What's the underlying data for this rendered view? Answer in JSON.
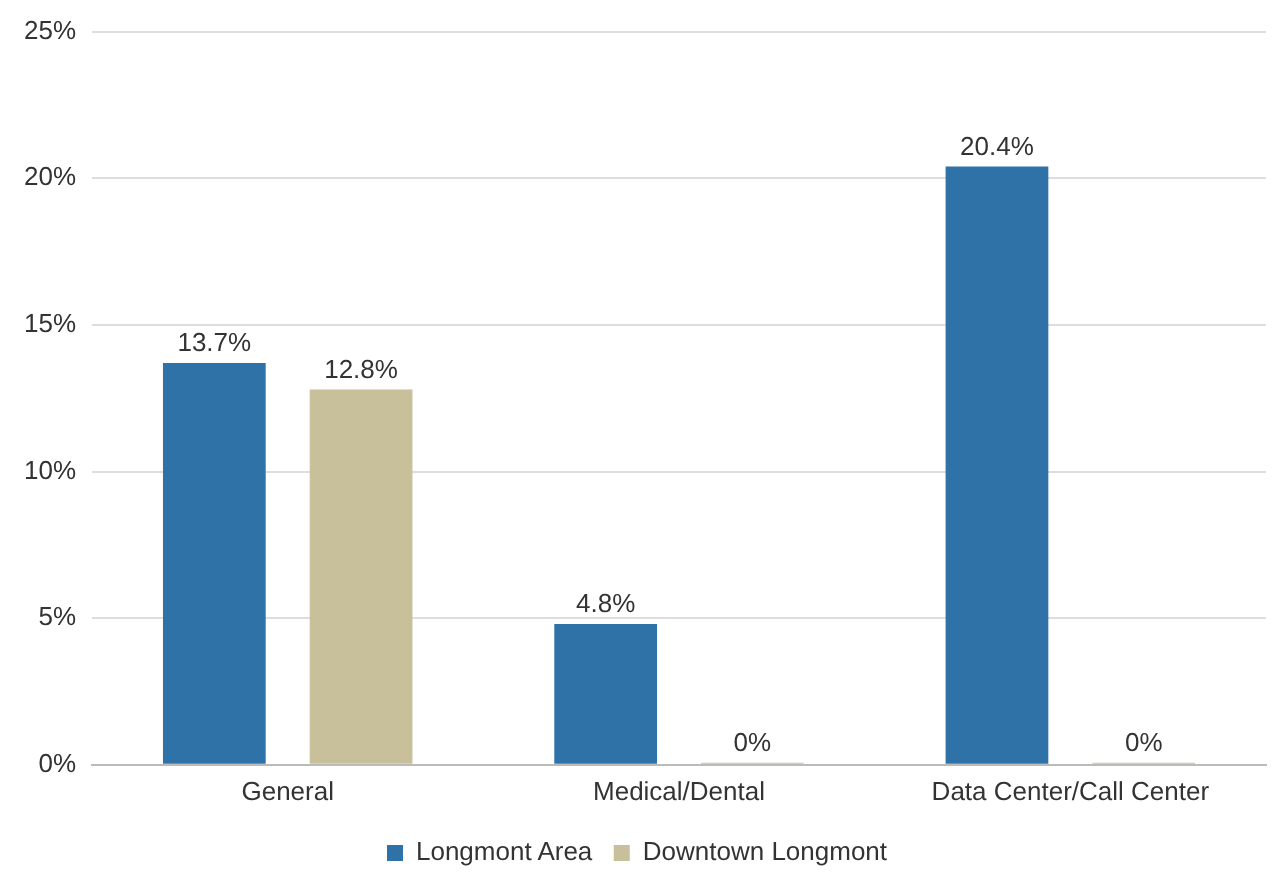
{
  "chart_data": {
    "type": "bar",
    "categories": [
      "General",
      "Medical/Dental",
      "Data Center/Call Center"
    ],
    "series": [
      {
        "name": "Longmont Area",
        "color": "#2e72a8",
        "values": [
          13.7,
          4.8,
          20.4
        ],
        "value_labels": [
          "13.7%",
          "4.8%",
          "20.4%"
        ]
      },
      {
        "name": "Downtown Longmont",
        "color": "#c8c09a",
        "values": [
          12.8,
          0,
          0
        ],
        "value_labels": [
          "12.8%",
          "0%",
          "0%"
        ]
      }
    ],
    "ylim": [
      0,
      25
    ],
    "yticks": [
      {
        "value": 0,
        "label": "0%"
      },
      {
        "value": 5,
        "label": "5%"
      },
      {
        "value": 10,
        "label": "10%"
      },
      {
        "value": 15,
        "label": "15%"
      },
      {
        "value": 20,
        "label": "20%"
      },
      {
        "value": 25,
        "label": "25%"
      }
    ],
    "grid": "y",
    "legend": "bottom"
  }
}
